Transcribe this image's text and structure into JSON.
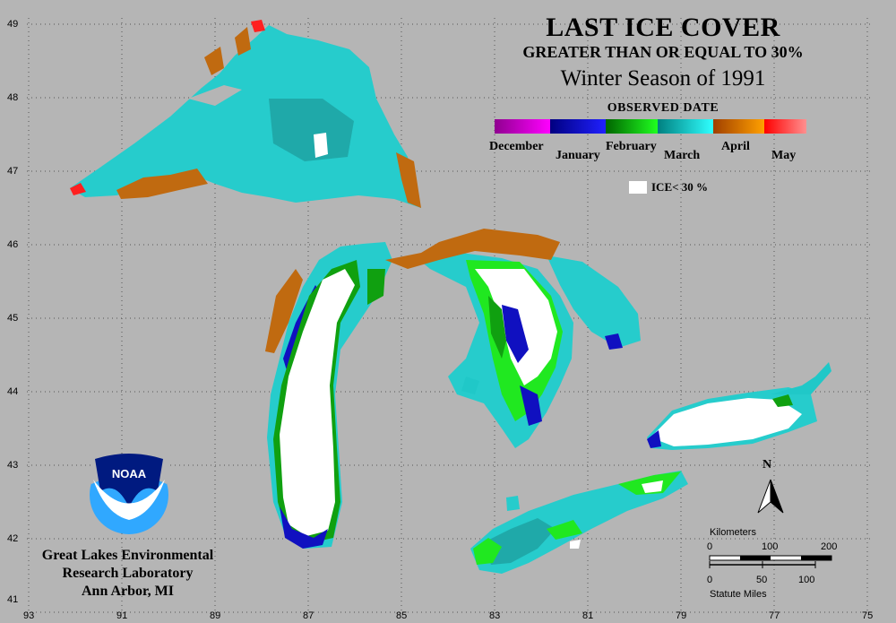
{
  "title": "LAST ICE COVER",
  "subtitle": "GREATER THAN OR EQUAL TO 30%",
  "season": "Winter Season of 1991",
  "legend": {
    "heading": "OBSERVED DATE",
    "months": [
      "December",
      "January",
      "February",
      "March",
      "April",
      "May"
    ],
    "colors": [
      "#a000a0",
      "#1010c0",
      "#10a010",
      "#20c8c8",
      "#c06a10",
      "#ff2020"
    ],
    "ice_label": "ICE< 30 %",
    "ice_color": "#ffffff"
  },
  "latitudes": [
    "49",
    "48",
    "47",
    "46",
    "45",
    "44",
    "43",
    "42",
    "41"
  ],
  "longitudes": [
    "93",
    "91",
    "89",
    "87",
    "85",
    "83",
    "81",
    "79",
    "77",
    "75"
  ],
  "north_label": "N",
  "scale": {
    "km_label": "Kilometers",
    "km_ticks": [
      "0",
      "100",
      "200"
    ],
    "mi_ticks": [
      "0",
      "50",
      "100"
    ],
    "mi_label": "Statute Miles"
  },
  "logo_text": "NOAA",
  "organization": [
    "Great Lakes Environmental",
    "Research Laboratory",
    "Ann Arbor, MI"
  ]
}
